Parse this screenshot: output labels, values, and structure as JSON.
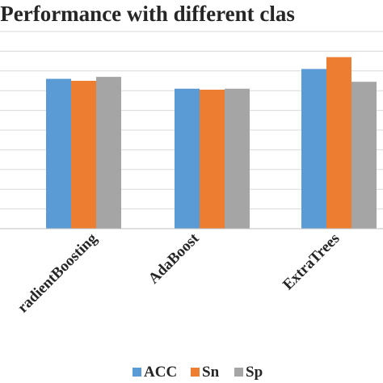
{
  "chart_data": {
    "type": "bar",
    "title": "l Performance with different clas",
    "categories": [
      "radientBoosting",
      "AdaBoost",
      "ExtraTrees"
    ],
    "series": [
      {
        "name": "ACC",
        "color": "#5b9bd5",
        "values": [
          0.76,
          0.71,
          0.81
        ]
      },
      {
        "name": "Sn",
        "color": "#ed7d31",
        "values": [
          0.75,
          0.705,
          0.87
        ]
      },
      {
        "name": "Sp",
        "color": "#a5a5a5",
        "values": [
          0.77,
          0.71,
          0.745
        ]
      }
    ],
    "ylim": [
      0,
      1
    ],
    "grid": true,
    "legend_position": "bottom"
  }
}
